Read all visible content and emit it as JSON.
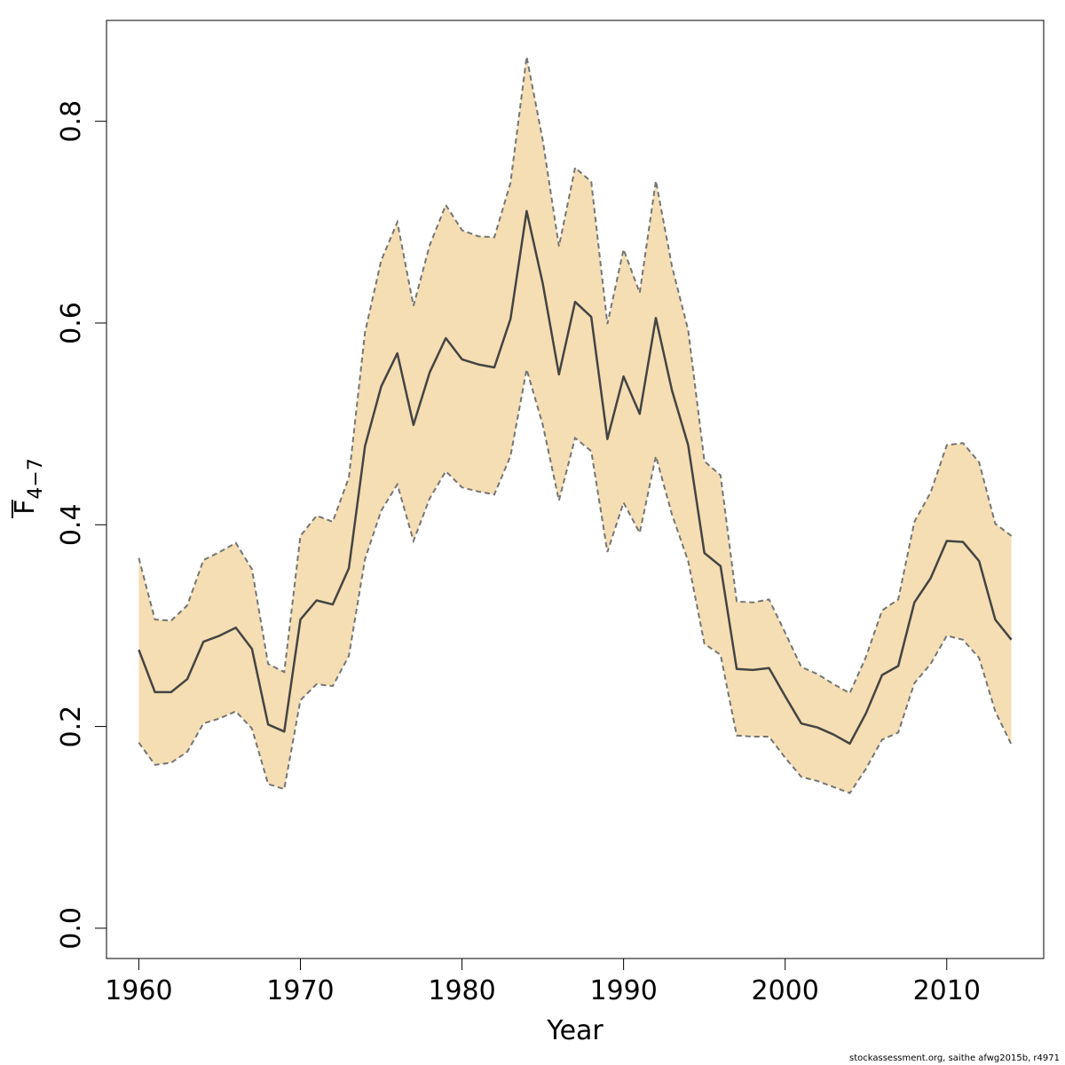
{
  "chart_data": {
    "type": "line",
    "title": "",
    "xlabel": "Year",
    "ylabel": {
      "main": "F",
      "subscript": "4−7"
    },
    "xlim": [
      1958,
      2016
    ],
    "ylim": [
      -0.03,
      0.9
    ],
    "x_ticks": [
      1960,
      1970,
      1980,
      1990,
      2000,
      2010
    ],
    "y_ticks": [
      0.0,
      0.2,
      0.4,
      0.6,
      0.8
    ],
    "y_tick_labels": [
      "0.0",
      "0.2",
      "0.4",
      "0.6",
      "0.8"
    ],
    "grid": false,
    "legend": "none",
    "colors": {
      "band_fill": "#f5deb3",
      "band_edge": "#757575",
      "line": "#444444",
      "axis": "#000000"
    },
    "x": [
      1960,
      1961,
      1962,
      1963,
      1964,
      1965,
      1966,
      1967,
      1968,
      1969,
      1970,
      1971,
      1972,
      1973,
      1974,
      1975,
      1976,
      1977,
      1978,
      1979,
      1980,
      1981,
      1982,
      1983,
      1984,
      1985,
      1986,
      1987,
      1988,
      1989,
      1990,
      1991,
      1992,
      1993,
      1994,
      1995,
      1996,
      1997,
      1998,
      1999,
      2000,
      2001,
      2002,
      2003,
      2004,
      2005,
      2006,
      2007,
      2008,
      2009,
      2010,
      2011,
      2012,
      2013,
      2014
    ],
    "series": [
      {
        "name": "estimate",
        "style": "solid",
        "values": [
          0.276,
          0.234,
          0.234,
          0.247,
          0.284,
          0.29,
          0.298,
          0.277,
          0.202,
          0.195,
          0.306,
          0.325,
          0.321,
          0.357,
          0.478,
          0.537,
          0.57,
          0.499,
          0.551,
          0.585,
          0.564,
          0.559,
          0.556,
          0.604,
          0.711,
          0.639,
          0.549,
          0.621,
          0.606,
          0.485,
          0.547,
          0.51,
          0.605,
          0.533,
          0.479,
          0.372,
          0.359,
          0.257,
          0.256,
          0.258,
          0.23,
          0.203,
          0.199,
          0.192,
          0.183,
          0.213,
          0.251,
          0.26,
          0.323,
          0.347,
          0.384,
          0.383,
          0.364,
          0.306,
          0.286
        ]
      },
      {
        "name": "upper",
        "style": "dashed",
        "values": [
          0.367,
          0.306,
          0.305,
          0.32,
          0.365,
          0.373,
          0.382,
          0.356,
          0.262,
          0.254,
          0.389,
          0.409,
          0.403,
          0.447,
          0.591,
          0.662,
          0.7,
          0.617,
          0.677,
          0.717,
          0.692,
          0.686,
          0.685,
          0.739,
          0.864,
          0.781,
          0.676,
          0.754,
          0.74,
          0.599,
          0.673,
          0.63,
          0.741,
          0.656,
          0.593,
          0.463,
          0.449,
          0.324,
          0.323,
          0.326,
          0.293,
          0.259,
          0.252,
          0.242,
          0.233,
          0.269,
          0.315,
          0.326,
          0.403,
          0.432,
          0.479,
          0.481,
          0.462,
          0.401,
          0.389
        ]
      },
      {
        "name": "lower",
        "style": "dashed",
        "values": [
          0.184,
          0.162,
          0.164,
          0.175,
          0.203,
          0.208,
          0.215,
          0.198,
          0.143,
          0.138,
          0.226,
          0.242,
          0.24,
          0.27,
          0.366,
          0.414,
          0.44,
          0.384,
          0.426,
          0.453,
          0.437,
          0.433,
          0.43,
          0.468,
          0.554,
          0.499,
          0.424,
          0.486,
          0.473,
          0.373,
          0.422,
          0.392,
          0.468,
          0.41,
          0.364,
          0.282,
          0.271,
          0.191,
          0.19,
          0.19,
          0.169,
          0.15,
          0.146,
          0.14,
          0.134,
          0.158,
          0.187,
          0.194,
          0.243,
          0.262,
          0.29,
          0.286,
          0.268,
          0.215,
          0.182
        ]
      }
    ]
  },
  "footer": {
    "text": "stockassessment.org, saithe  afwg2015b, r4971"
  }
}
